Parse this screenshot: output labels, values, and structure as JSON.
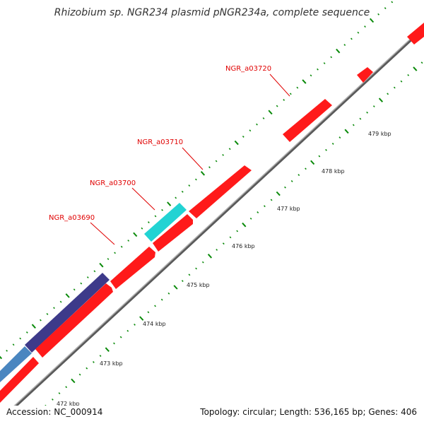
{
  "title": "Rhizobium sp. NGR234 plasmid pNGR234a, complete sequence",
  "footer": {
    "accession": "Accession: NC_000914",
    "summary": "Topology: circular; Length: 536,165 bp; Genes: 406"
  },
  "gene_labels": [
    "NGR_a03690",
    "NGR_a03700",
    "NGR_a03710",
    "NGR_a03720"
  ],
  "kbp_labels": [
    "473 kbp",
    "474 kbp",
    "475 kbp",
    "476 kbp",
    "477 kbp",
    "478 kbp",
    "479 kbp"
  ],
  "truncated_kbp_label": "472 kbp",
  "colors": {
    "backbone": "#8c8c8c",
    "gene_red": "#ff1a1a",
    "gene_cyan": "#22d3d3",
    "gene_navy": "#3d3a8a",
    "gene_steel": "#4a86c0",
    "label_red": "#e00000",
    "tick_green": "#0a8a0a"
  }
}
